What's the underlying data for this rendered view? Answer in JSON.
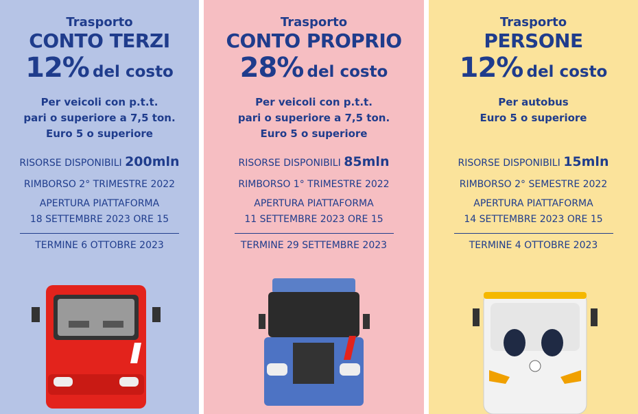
{
  "columns": [
    {
      "kicker": "Trasporto",
      "title": "CONTO TERZI",
      "percent": "12%",
      "percent_suffix": "del costo",
      "description": [
        "Per veicoli con p.t.t.",
        "pari o superiore a 7,5 ton.",
        "Euro 5 o superiore"
      ],
      "resources_label": "RISORSE DISPONIBILI",
      "resources_amount": "200mln",
      "refund": "RIMBORSO 2° TRIMESTRE 2022",
      "opening": [
        "APERTURA PIATTAFORMA",
        "18 SETTEMBRE 2023 ORE 15"
      ],
      "deadline": "TERMINE 6 OTTOBRE 2023"
    },
    {
      "kicker": "Trasporto",
      "title": "CONTO PROPRIO",
      "percent": "28%",
      "percent_suffix": "del costo",
      "description": [
        "Per veicoli con p.t.t.",
        "pari o superiore a 7,5 ton.",
        "Euro 5 o superiore"
      ],
      "resources_label": "RISORSE DISPONIBILI",
      "resources_amount": "85mln",
      "refund": "RIMBORSO 1° TRIMESTRE 2022",
      "opening": [
        "APERTURA PIATTAFORMA",
        "11 SETTEMBRE 2023 ORE 15"
      ],
      "deadline": "TERMINE 29 SETTEMBRE 2023"
    },
    {
      "kicker": "Trasporto",
      "title": "PERSONE",
      "percent": "12%",
      "percent_suffix": "del costo",
      "description": [
        "Per autobus",
        "Euro 5 o superiore"
      ],
      "resources_label": "RISORSE DISPONIBILI",
      "resources_amount": "15mln",
      "refund": "RIMBORSO 2° SEMESTRE 2022",
      "opening": [
        "APERTURA PIATTAFORMA",
        "14 SETTEMBRE 2023 ORE 15"
      ],
      "deadline": "TERMINE 4 OTTOBRE 2023"
    }
  ]
}
